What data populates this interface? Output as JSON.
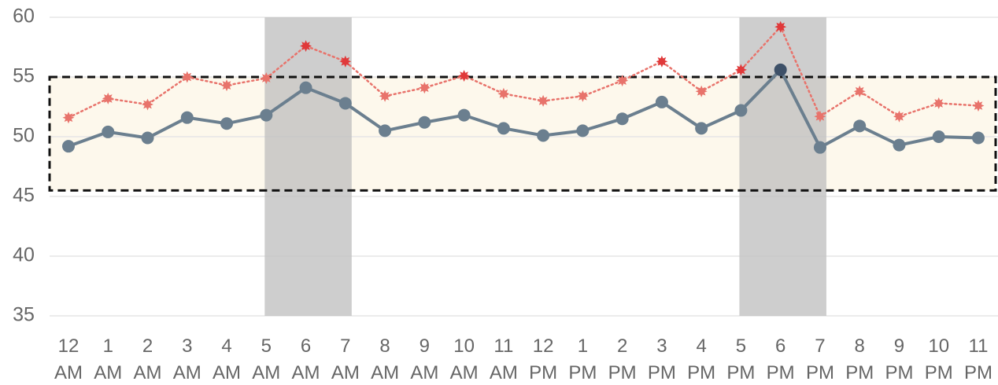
{
  "chart_data": {
    "type": "line",
    "categories": [
      "12 AM",
      "1 AM",
      "2 AM",
      "3 AM",
      "4 AM",
      "5 AM",
      "6 AM",
      "7 AM",
      "8 AM",
      "9 AM",
      "10 AM",
      "11 AM",
      "12 PM",
      "1 PM",
      "2 PM",
      "3 PM",
      "4 PM",
      "5 PM",
      "6 PM",
      "7 PM",
      "8 PM",
      "9 PM",
      "10 PM",
      "11 PM"
    ],
    "series": [
      {
        "color": "#6b7f8f",
        "highlight_color": "#3d5068",
        "style": "solid",
        "marker": "circle",
        "values": [
          49.2,
          50.4,
          49.9,
          51.6,
          51.1,
          51.8,
          54.1,
          52.8,
          50.5,
          51.2,
          51.8,
          50.7,
          50.1,
          50.5,
          51.5,
          52.9,
          50.7,
          52.2,
          55.6,
          49.1,
          50.9,
          49.3,
          50.0,
          49.9
        ]
      },
      {
        "color": "#e8736b",
        "highlight_color": "#e0393a",
        "style": "dotted",
        "marker": "star",
        "values": [
          51.6,
          53.2,
          52.7,
          55.0,
          54.3,
          54.9,
          57.6,
          56.3,
          53.4,
          54.1,
          55.1,
          53.6,
          53.0,
          53.4,
          54.7,
          56.3,
          53.8,
          55.6,
          59.2,
          51.7,
          53.8,
          51.7,
          52.8,
          52.6
        ]
      }
    ],
    "highlights": [
      {
        "from": "5 AM",
        "to": "7 AM"
      },
      {
        "from": "5 PM",
        "to": "7 PM"
      }
    ],
    "target_range": [
      45.5,
      55
    ],
    "ylim": [
      35,
      60
    ],
    "yticks": [
      35,
      40,
      45,
      50,
      55,
      60
    ],
    "grid": true
  }
}
